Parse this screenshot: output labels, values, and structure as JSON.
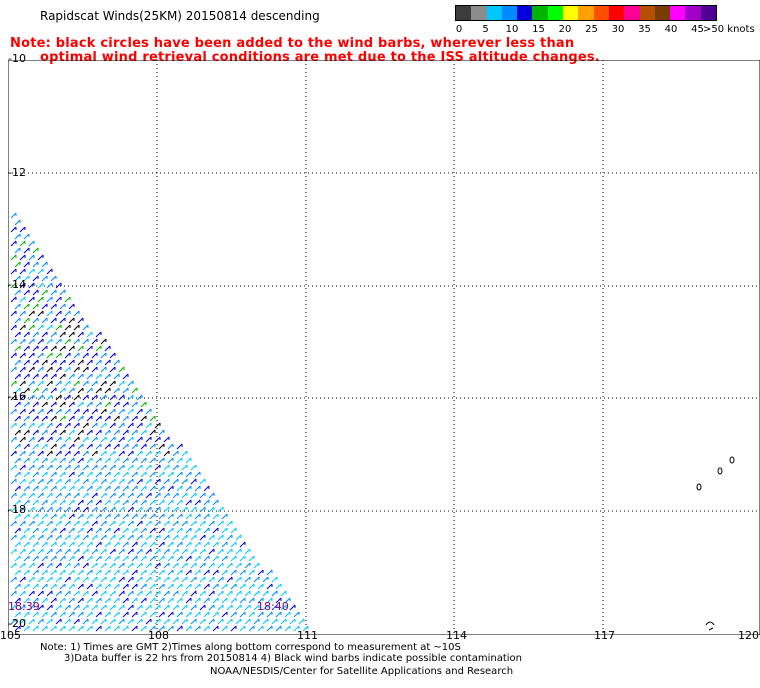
{
  "header": {
    "title": "Rapidscat Winds(25KM) 20150814 descending",
    "note_line1": "Note: black circles have been added to the wind barbs, wherever less than",
    "note_line2": "optimal wind retrieval conditions are met due to the ISS altitude changes."
  },
  "legend": {
    "unit_label": ">50 knots",
    "ticks": [
      "0",
      "5",
      "10",
      "15",
      "20",
      "25",
      "30",
      "35",
      "40",
      "45"
    ],
    "colors": [
      "#3c3c3c",
      "#8c8c8c",
      "#00c8ff",
      "#008cff",
      "#0000dc",
      "#00b400",
      "#00ff00",
      "#ffff00",
      "#ffa000",
      "#ff5000",
      "#ff0000",
      "#ff0096",
      "#b45000",
      "#783c00",
      "#ff00ff",
      "#a000c8",
      "#500096"
    ]
  },
  "axes": {
    "y_labels": [
      "-10",
      "-12",
      "-14",
      "-16",
      "-18",
      "-20"
    ],
    "x_labels": [
      "105",
      "108",
      "111",
      "114",
      "117",
      "120"
    ]
  },
  "map": {
    "time_left": "18:39",
    "time_right": "18:40"
  },
  "footer": {
    "line1": "Note: 1) Times are GMT 2)Times along bottom correspond to measurement at ~10S",
    "line2": "3)Data buffer is 22 hrs from 20150814 4) Black wind barbs indicate possible contamination",
    "line3": "NOAA/NESDIS/Center for Satellite Applications and Research"
  }
}
